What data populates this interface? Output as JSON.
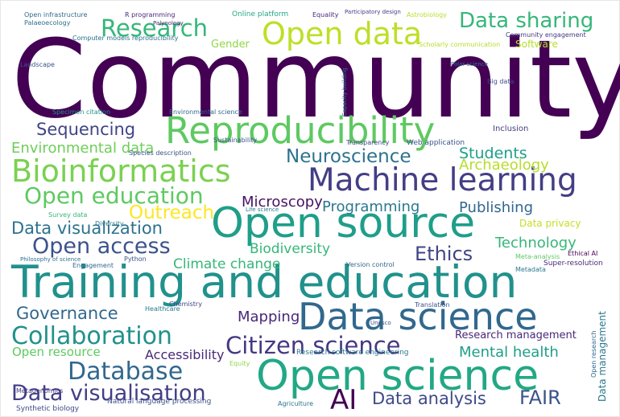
{
  "words": [
    "Community",
    "Training and education",
    "Open source",
    "Open science",
    "Data science",
    "Reproducibility",
    "Machine learning",
    "Bioinformatics",
    "Open data",
    "Research",
    "Data sharing",
    "Collaboration",
    "Citizen science",
    "Database",
    "Data visualisation",
    "AI",
    "Data analysis",
    "FAIR",
    "Neuroscience",
    "Open education",
    "Outreach",
    "Open access",
    "Data visualization",
    "Governance",
    "Mapping",
    "Sequencing",
    "Environmental data",
    "Students",
    "Archaeology",
    "Microscopy",
    "Programming",
    "Publishing",
    "Ethics",
    "Technology",
    "Biodiversity",
    "Climate change",
    "Accessibility",
    "Open resource",
    "Mental health",
    "Research management",
    "Gender",
    "Software",
    "Data privacy",
    "Data management",
    "Inclusion",
    "Web application",
    "Transparency",
    "Research software engineering",
    "Natural language processing",
    "Synthetic biology",
    "Metagenomics",
    "Version control",
    "Super-resolution",
    "Healthcare",
    "Chemistry",
    "Python",
    "Engagement",
    "Philosophy of science",
    "Diversity",
    "Survey data",
    "Life science",
    "Species description",
    "Environmental science",
    "Specimen citation",
    "Landscape",
    "Computer models reproducibility",
    "Open infrastructure",
    "R programming",
    "Online platform",
    "Equality",
    "Participatory design",
    "Astrobiology",
    "Palaeoecology",
    "Community engagement",
    "Scholarly communication",
    "Polar science",
    "Big data",
    "Sustainability",
    "Capacity building",
    "Agriculture",
    "Equity",
    "Translation",
    "Metadata",
    "Ethical AI",
    "Meta-analysis",
    "Unesco",
    "Open research",
    "Palynology"
  ]
}
